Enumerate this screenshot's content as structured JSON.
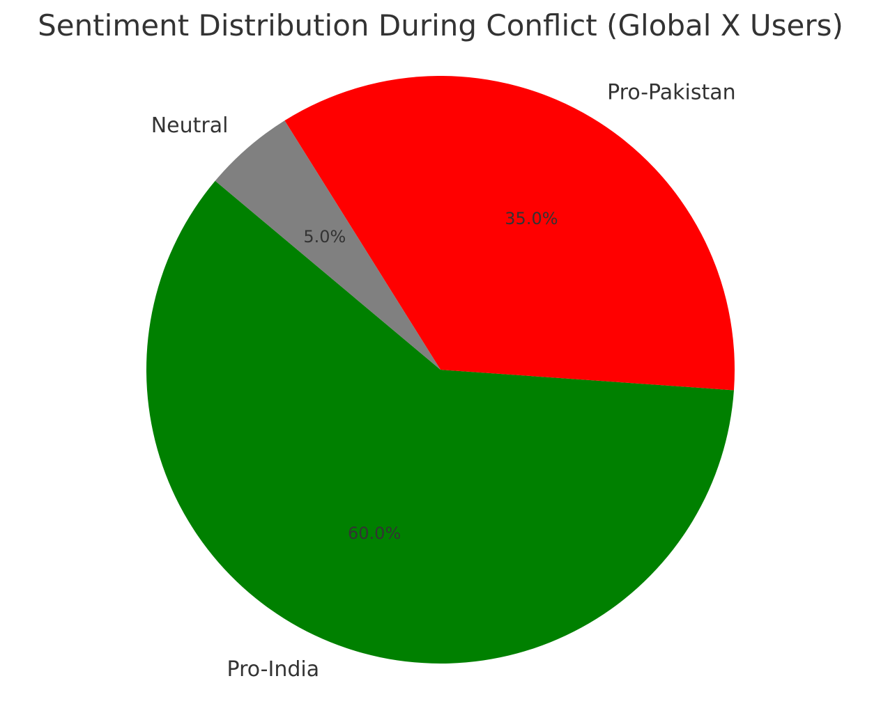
{
  "chart_data": {
    "type": "pie",
    "title": "Sentiment Distribution During Conflict (Global X Users)",
    "categories": [
      "Pro-India",
      "Pro-Pakistan",
      "Neutral"
    ],
    "values": [
      60.0,
      35.0,
      5.0
    ],
    "percent_labels": [
      "60.0%",
      "35.0%",
      "5.0%"
    ],
    "colors": [
      "#008000",
      "#ff0000",
      "#808080"
    ],
    "start_angle_deg": 140,
    "direction": "counterclockwise"
  }
}
